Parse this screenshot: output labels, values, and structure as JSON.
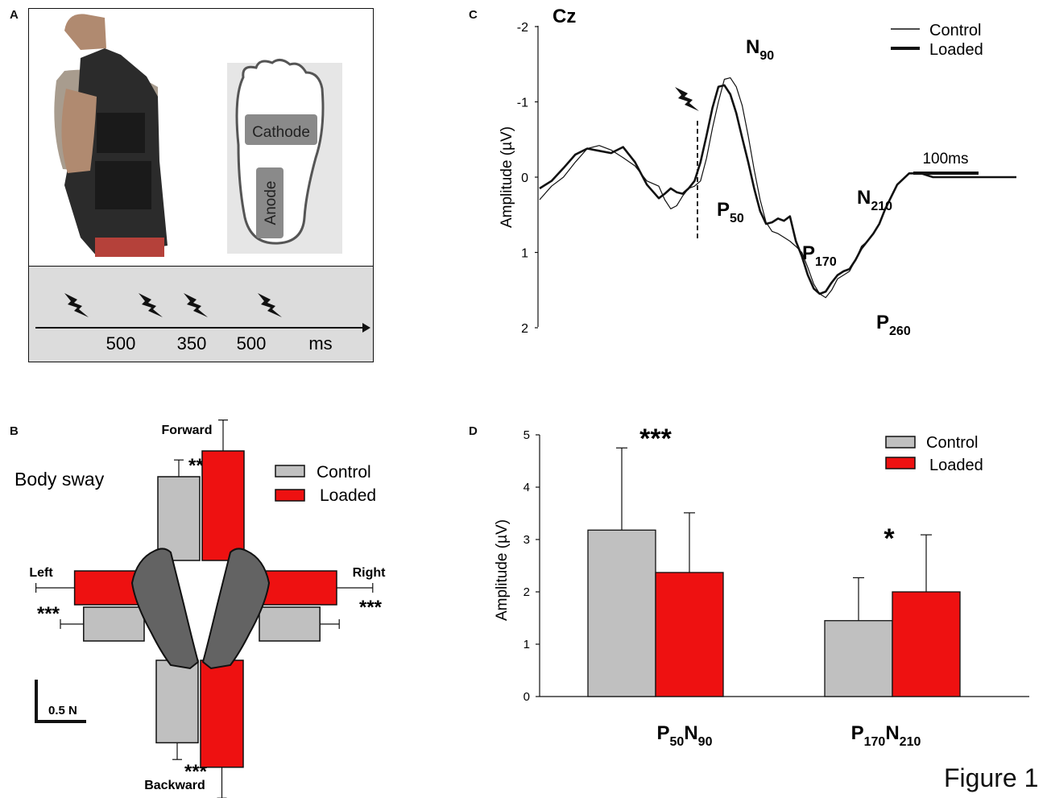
{
  "figure_label": "Figure 1",
  "panels": {
    "a": {
      "letter": "A",
      "cathode_label": "Cathode",
      "anode_label": "Anode",
      "timeline": {
        "intervals": [
          "500",
          "350",
          "500"
        ],
        "unit": "ms"
      }
    },
    "b": {
      "letter": "B",
      "title": "Body sway",
      "directions": {
        "forward": "Forward",
        "backward": "Backward",
        "left": "Left",
        "right": "Right"
      },
      "scale_label": "0.5 N",
      "sig": "***"
    },
    "c": {
      "letter": "C",
      "channel": "Cz",
      "scale_label": "100ms"
    },
    "d": {
      "letter": "D",
      "sig_p50n90": "***",
      "sig_p170n210": "*"
    }
  },
  "colors": {
    "control": "#c0c0c0",
    "loaded": "#ee1111",
    "foot": "#636363",
    "timeline_bg": "#dcdcdc"
  },
  "icons": {
    "stimulus": "lightning-bolt-icon"
  },
  "chart_data": [
    {
      "id": "B",
      "type": "bar",
      "title": "Body sway",
      "unit": "N",
      "series": [
        {
          "name": "Control",
          "values": {
            "Forward": 0.65,
            "Backward": 0.64,
            "Left": 0.47,
            "Right": 0.47
          },
          "errors": {
            "Forward": 0.13,
            "Backward": 0.13,
            "Left": 0.18,
            "Right": 0.15
          }
        },
        {
          "name": "Loaded",
          "values": {
            "Forward": 0.85,
            "Backward": 0.83,
            "Left": 0.54,
            "Right": 0.6
          },
          "errors": {
            "Forward": 0.24,
            "Backward": 0.24,
            "Left": 0.3,
            "Right": 0.28
          }
        }
      ],
      "significance": {
        "Forward": "***",
        "Backward": "***",
        "Left": "***",
        "Right": "***"
      },
      "legend": [
        "Control",
        "Loaded"
      ]
    },
    {
      "id": "C",
      "type": "line",
      "title": "Cz",
      "xlabel": "",
      "ylabel": "Amplitude (µV)",
      "ylim": [
        -2,
        2
      ],
      "y_inverted": true,
      "yticks": [
        "-2",
        "-1",
        "0",
        "1",
        "2"
      ],
      "x_unit": "ms",
      "x_range": [
        -100,
        300
      ],
      "stimulus_x": 0,
      "series": [
        {
          "name": "Control",
          "x": [
            -100,
            -90,
            -80,
            -70,
            -60,
            -50,
            -40,
            -30,
            -20,
            -10,
            0,
            5,
            10,
            15,
            20,
            25,
            30,
            35,
            40,
            45,
            50,
            55,
            60,
            65,
            70,
            75,
            80,
            85,
            90,
            95,
            100,
            105,
            110,
            115,
            120,
            125,
            130,
            135,
            140,
            145,
            150,
            155,
            160,
            165,
            170,
            175,
            180,
            185,
            190,
            200,
            210,
            220,
            230,
            240,
            250,
            260,
            270,
            280,
            290,
            300
          ],
          "y": [
            0.3,
            0.12,
            0.0,
            -0.2,
            -0.38,
            -0.42,
            -0.36,
            -0.26,
            -0.15,
            0.05,
            0.12,
            0.3,
            0.42,
            0.38,
            0.25,
            0.15,
            0.12,
            0.05,
            -0.25,
            -0.65,
            -1.0,
            -1.3,
            -1.32,
            -1.2,
            -0.95,
            -0.55,
            -0.1,
            0.3,
            0.6,
            0.72,
            0.75,
            0.8,
            0.85,
            0.92,
            1.0,
            1.2,
            1.42,
            1.55,
            1.6,
            1.5,
            1.35,
            1.3,
            1.25,
            1.1,
            0.92,
            0.85,
            0.75,
            0.62,
            0.42,
            0.1,
            -0.05,
            -0.05,
            0.0,
            0.0,
            0.0,
            0.0,
            0.0,
            0.0,
            0.0,
            0.0
          ]
        },
        {
          "name": "Loaded",
          "x": [
            -100,
            -90,
            -80,
            -70,
            -60,
            -50,
            -40,
            -30,
            -20,
            -10,
            0,
            5,
            10,
            15,
            20,
            25,
            30,
            35,
            40,
            45,
            50,
            55,
            60,
            65,
            70,
            75,
            80,
            85,
            90,
            95,
            100,
            105,
            110,
            115,
            120,
            125,
            130,
            135,
            140,
            145,
            150,
            155,
            160,
            165,
            170,
            175,
            180,
            185,
            190,
            200,
            210,
            220,
            230,
            240,
            250,
            260,
            270,
            280,
            290,
            300
          ],
          "y": [
            0.15,
            0.05,
            -0.12,
            -0.3,
            -0.38,
            -0.35,
            -0.32,
            -0.4,
            -0.2,
            0.1,
            0.28,
            0.22,
            0.15,
            0.2,
            0.22,
            0.15,
            0.05,
            -0.2,
            -0.55,
            -0.92,
            -1.2,
            -1.22,
            -1.1,
            -0.85,
            -0.52,
            -0.2,
            0.15,
            0.45,
            0.62,
            0.6,
            0.55,
            0.58,
            0.52,
            0.85,
            1.05,
            1.3,
            1.48,
            1.55,
            1.52,
            1.4,
            1.3,
            1.25,
            1.22,
            1.1,
            0.95,
            0.85,
            0.75,
            0.62,
            0.42,
            0.1,
            -0.05,
            -0.05,
            0.0,
            0.0,
            0.0,
            0.0,
            0.0,
            0.0,
            0.0,
            0.0
          ]
        }
      ],
      "annotations": [
        {
          "base": "N",
          "sub": "90"
        },
        {
          "base": "P",
          "sub": "50"
        },
        {
          "base": "P",
          "sub": "170"
        },
        {
          "base": "N",
          "sub": "210"
        },
        {
          "base": "P",
          "sub": "260"
        }
      ],
      "legend": [
        "Control",
        "Loaded"
      ]
    },
    {
      "id": "D",
      "type": "bar",
      "xlabel": "",
      "ylabel": "Amplitude (µV)",
      "ylim": [
        0,
        5
      ],
      "yticks": [
        "0",
        "1",
        "2",
        "3",
        "4",
        "5"
      ],
      "categories": [
        {
          "base": "P",
          "sub": "50",
          "base2": "N",
          "sub2": "90"
        },
        {
          "base": "P",
          "sub": "170",
          "base2": "N",
          "sub2": "210"
        }
      ],
      "series": [
        {
          "name": "Control",
          "values": [
            3.18,
            1.45
          ],
          "errors": [
            1.57,
            0.82
          ]
        },
        {
          "name": "Loaded",
          "values": [
            2.37,
            2.0
          ],
          "errors": [
            1.14,
            1.09
          ]
        }
      ],
      "legend": [
        "Control",
        "Loaded"
      ]
    }
  ]
}
